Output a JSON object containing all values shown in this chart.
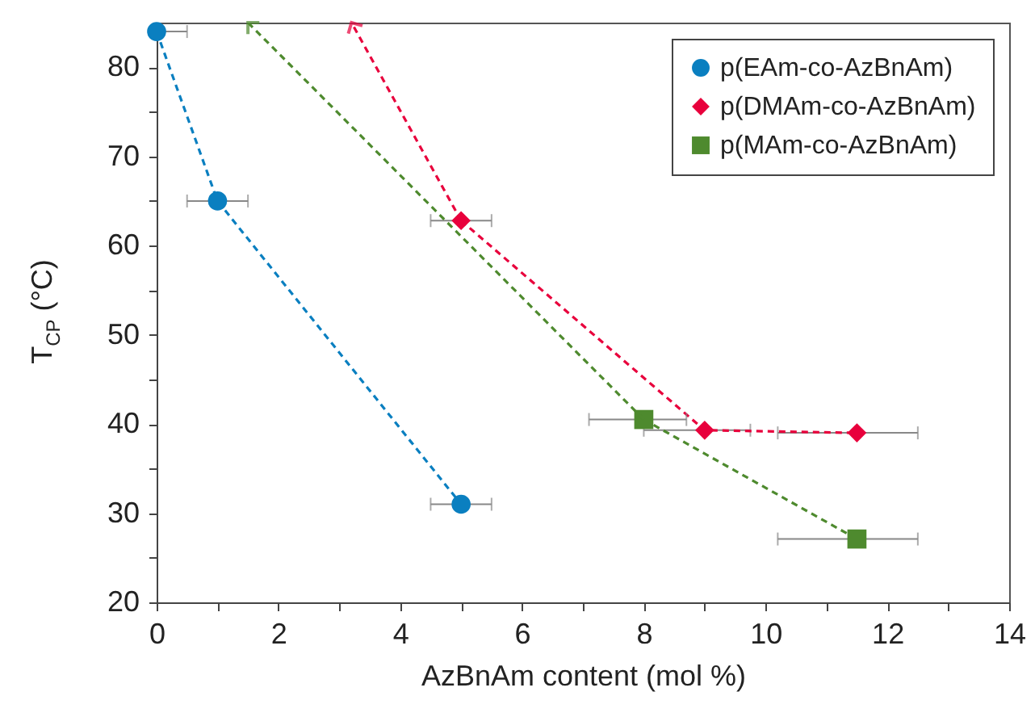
{
  "chart_data": {
    "type": "line",
    "xlabel": "AzBnAm content (mol %)",
    "ylabel": "T$_{CP}$ (°C)",
    "xlim": [
      0,
      14
    ],
    "xticks": [
      0,
      {
        "value": 1,
        "label": null
      },
      2,
      {
        "value": 3,
        "label": null
      },
      4,
      {
        "value": 5,
        "label": null
      },
      6,
      {
        "value": 7,
        "label": null
      },
      8,
      {
        "value": 9,
        "label": null
      },
      10,
      {
        "value": 11,
        "label": null
      },
      12,
      {
        "value": 13,
        "label": null
      },
      14
    ],
    "ylim": [
      20,
      85
    ],
    "yticks": [
      20,
      {
        "value": 25,
        "label": null
      },
      30,
      {
        "value": 35,
        "label": null
      },
      40,
      {
        "value": 45,
        "label": null
      },
      50,
      {
        "value": 55,
        "label": null
      },
      60,
      {
        "value": 65,
        "label": null
      },
      70,
      {
        "value": 75,
        "label": null
      },
      80
    ],
    "grid": false,
    "legend": "top right",
    "series": [
      {
        "name": "p(EAm-co-AzBnAm)",
        "color": "#0a7fc0",
        "marker": "circle",
        "line_style": "dashed",
        "x": [
          0,
          1,
          5
        ],
        "values": [
          84.0,
          65.0,
          31.0
        ],
        "xerrors": [
          0.5,
          0.5,
          0.5
        ]
      },
      {
        "name": "p(DMAm-co-AzBnAm)",
        "color": "#e8003c",
        "marker": "diamond",
        "line_style": "dashed",
        "x": [
          5,
          9,
          11.5
        ],
        "values": [
          62.8,
          39.3,
          39.0
        ],
        "xerrors": [
          0.5,
          [
            8.0,
            9.75
          ],
          [
            10.2,
            12.5
          ]
        ]
      },
      {
        "name": "p(MAm-co-AzBnAm)",
        "color": "#4e8a2e",
        "marker": "square",
        "line_style": "dashed",
        "x": [
          8,
          11.5
        ],
        "values": [
          40.5,
          27.1
        ],
        "xerrors": [
          [
            7.1,
            8.7
          ],
          [
            10.2,
            12.5
          ]
        ]
      },
      {
        "color": "#e8003c",
        "marker": "none",
        "line_style": "dashed",
        "x": [
          5,
          3.2
        ],
        "values": [
          62.8,
          85
        ]
      },
      {
        "color": "#4e8a2e",
        "marker": "none",
        "line_style": "dashed",
        "x": [
          8,
          1.5
        ],
        "values": [
          40.5,
          85
        ]
      }
    ]
  }
}
